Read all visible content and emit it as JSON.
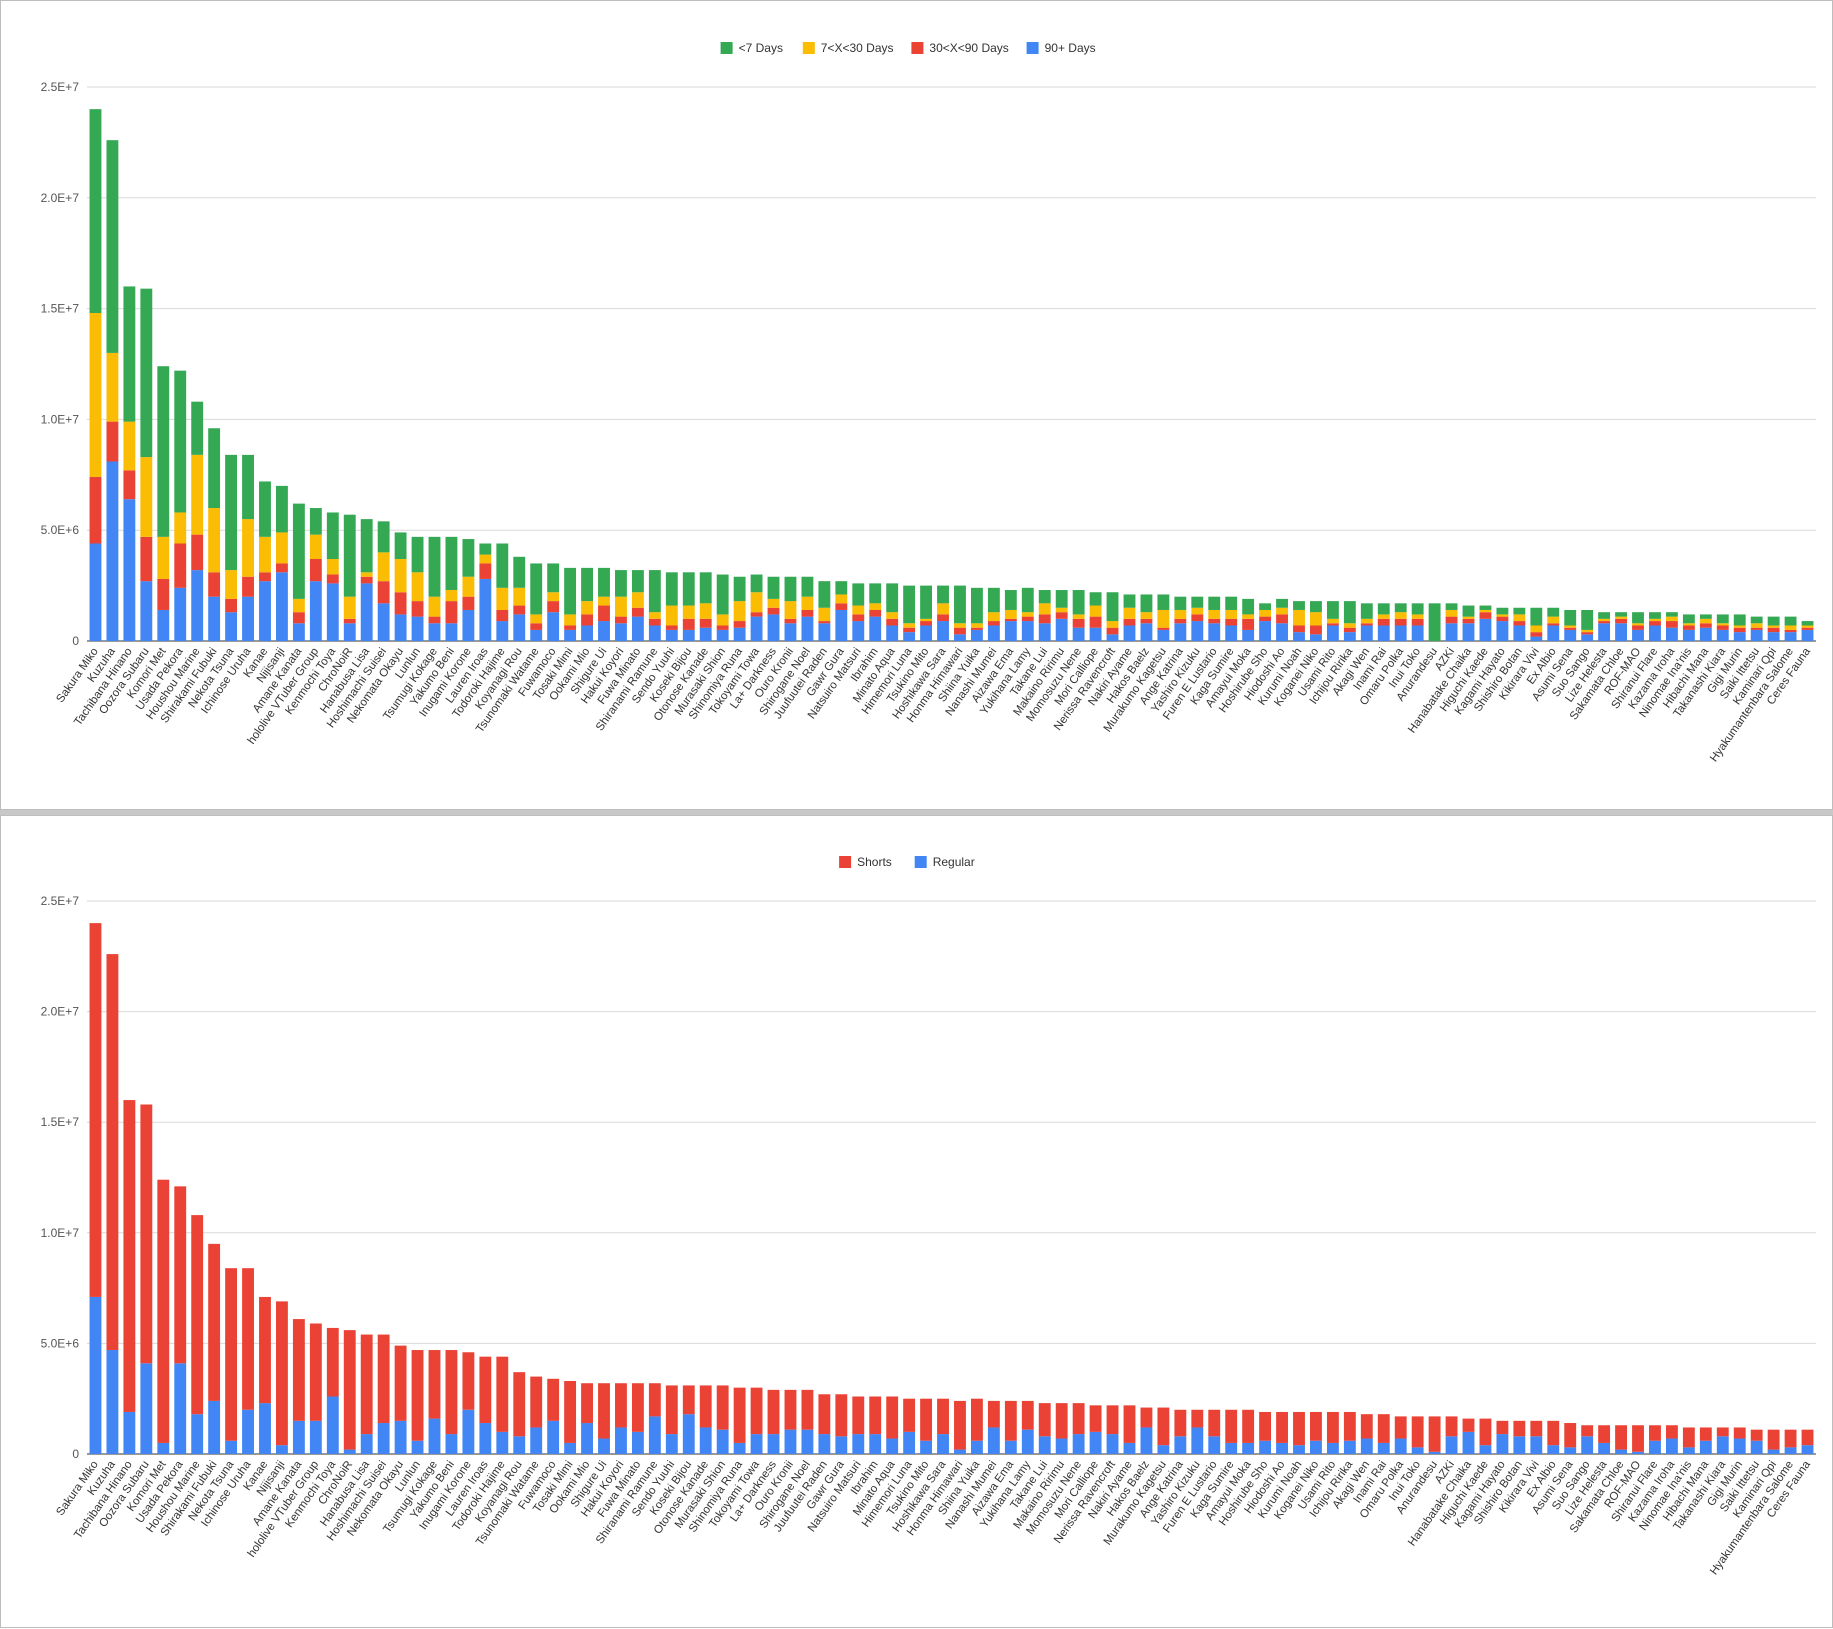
{
  "chart_data": [
    {
      "type": "bar",
      "stacked": true,
      "title": "",
      "xlabel": "",
      "ylabel": "",
      "ylim": [
        0,
        25000000
      ],
      "grid": true,
      "legend_position": "top",
      "y_ticks": [
        "0",
        "5.0E+6",
        "1.0E+7",
        "1.5E+7",
        "2.0E+7",
        "2.5E+7"
      ],
      "categories": [
        "Sakura Miko",
        "Kuzuha",
        "Tachibana Hinano",
        "Oozora Subaru",
        "Komori Met",
        "Usada Pekora",
        "Houshou Marine",
        "Shirakami Fubuki",
        "Nekota Tsuna",
        "Ichinose Uruha",
        "Kanae",
        "Nijisanji",
        "Amane Kanata",
        "hololive VTuber Group",
        "Kenmochi Toya",
        "ChroNoiR",
        "Hanabusa Lisa",
        "Hoshimachi Suisei",
        "Nekomata Okayu",
        "Lunlun",
        "Tsumugi Kokage",
        "Yakumo Beni",
        "Inugami Korone",
        "Lauren Iroas",
        "Todoroki Hajime",
        "Koyanagi Rou",
        "Tsunomaki Watame",
        "Fuwamoco",
        "Tosaki Mimi",
        "Ookami Mio",
        "Shigure Ui",
        "Hakui Koyori",
        "Fuwa Minato",
        "Shiranami Ramune",
        "Sendo Yuuhi",
        "Koseki Bijou",
        "Otonose Kanade",
        "Murasaki Shion",
        "Shinomiya Runa",
        "Tokoyami Towa",
        "La+ Darkness",
        "Ouro Kronii",
        "Shirogane Noel",
        "Juufuutei Raden",
        "Gawr Gura",
        "Natsuiro Matsuri",
        "Ibrahim",
        "Minato Aqua",
        "Himemori Luna",
        "Tsukino Mito",
        "Hoshikawa Sara",
        "Honma Himawari",
        "Shiina Yuika",
        "Nanashi Mumei",
        "Aizawa Ema",
        "Yukihana Lamy",
        "Takane Lui",
        "Makaino Ririmu",
        "Momosuzu Nene",
        "Mori Calliope",
        "Nerissa Ravencroft",
        "Nakiri Ayame",
        "Hakos Baelz",
        "Murakumo Kagetsu",
        "Ange Katrina",
        "Yashiro Kizuku",
        "Furen E Lustario",
        "Kaga Sumire",
        "Amayui Moka",
        "Hoshirube Sho",
        "Hiodoshi Ao",
        "Kurumi Noah",
        "Koganei Niko",
        "Usami Rito",
        "Ichijou Ririka",
        "Akagi Wen",
        "Inami Rai",
        "Omaru Polka",
        "Inui Toko",
        "Anurandesu",
        "AZKi",
        "Hanabatake Chaika",
        "Higuchi Kaede",
        "Kagami Hayato",
        "Shishiro Botan",
        "Kikirara Vivi",
        "Ex Albio",
        "Asumi Sena",
        "Suo Sango",
        "Lize Helesta",
        "Sakamata Chloe",
        "ROF-MAO",
        "Shiranui Flare",
        "Kazama Iroha",
        "Ninomae Ina'nis",
        "Hibachi Mana",
        "Takanashi Kiara",
        "Gigi Murin",
        "Saiki Ittetsu",
        "Kaminari Qpi",
        "Hyakumantenbara Salome",
        "Ceres Fauna"
      ],
      "series": [
        {
          "name": "90+ Days",
          "color": "#4285f4",
          "values": [
            4.4,
            8.1,
            6.4,
            2.7,
            1.4,
            2.4,
            3.2,
            2.0,
            1.3,
            2.0,
            2.7,
            3.1,
            0.8,
            2.7,
            2.6,
            0.8,
            2.6,
            1.7,
            1.2,
            1.1,
            0.8,
            0.8,
            1.4,
            2.8,
            0.9,
            1.2,
            0.5,
            1.3,
            0.5,
            0.7,
            0.9,
            0.8,
            1.1,
            0.7,
            0.5,
            0.5,
            0.6,
            0.5,
            0.6,
            1.1,
            1.2,
            0.8,
            1.1,
            0.8,
            1.4,
            0.9,
            1.1,
            0.7,
            0.4,
            0.7,
            0.9,
            0.3,
            0.5,
            0.7,
            0.9,
            0.9,
            0.8,
            1.0,
            0.6,
            0.6,
            0.3,
            0.7,
            0.8,
            0.5,
            0.8,
            0.9,
            0.8,
            0.7,
            0.5,
            0.9,
            0.8,
            0.4,
            0.3,
            0.7,
            0.4,
            0.7,
            0.7,
            0.7,
            0.7,
            0.0,
            0.8,
            0.8,
            1.0,
            0.9,
            0.7,
            0.2,
            0.7,
            0.5,
            0.3,
            0.8,
            0.8,
            0.5,
            0.7,
            0.6,
            0.5,
            0.6,
            0.5,
            0.4,
            0.5,
            0.4,
            0.4,
            0.5
          ]
        },
        {
          "name": "30<X<90 Days",
          "color": "#ea4335",
          "values": [
            3.0,
            1.8,
            1.3,
            2.0,
            1.4,
            2.0,
            1.6,
            1.1,
            0.6,
            0.9,
            0.4,
            0.4,
            0.5,
            1.0,
            0.4,
            0.2,
            0.3,
            1.0,
            1.0,
            0.7,
            0.3,
            1.0,
            0.6,
            0.7,
            0.5,
            0.4,
            0.3,
            0.5,
            0.2,
            0.5,
            0.7,
            0.3,
            0.4,
            0.3,
            0.2,
            0.5,
            0.4,
            0.2,
            0.3,
            0.2,
            0.3,
            0.2,
            0.3,
            0.1,
            0.3,
            0.3,
            0.3,
            0.3,
            0.2,
            0.2,
            0.3,
            0.3,
            0.1,
            0.2,
            0.1,
            0.2,
            0.4,
            0.3,
            0.4,
            0.5,
            0.3,
            0.3,
            0.2,
            0.1,
            0.2,
            0.3,
            0.2,
            0.3,
            0.5,
            0.2,
            0.4,
            0.3,
            0.4,
            0.1,
            0.2,
            0.1,
            0.3,
            0.3,
            0.3,
            0.0,
            0.3,
            0.2,
            0.3,
            0.2,
            0.2,
            0.2,
            0.1,
            0.1,
            0.1,
            0.1,
            0.2,
            0.2,
            0.2,
            0.3,
            0.2,
            0.2,
            0.2,
            0.2,
            0.1,
            0.2,
            0.1,
            0.1
          ]
        },
        {
          "name": "7<X<30 Days",
          "color": "#fbbc04",
          "values": [
            7.4,
            3.1,
            2.2,
            3.6,
            1.9,
            1.4,
            3.6,
            2.9,
            1.3,
            2.6,
            1.6,
            1.4,
            0.6,
            1.1,
            0.7,
            1.0,
            0.2,
            1.3,
            1.5,
            1.3,
            0.9,
            0.5,
            0.9,
            0.4,
            1.0,
            0.8,
            0.4,
            0.4,
            0.5,
            0.6,
            0.4,
            0.9,
            0.7,
            0.3,
            0.9,
            0.6,
            0.7,
            0.5,
            0.9,
            0.9,
            0.4,
            0.8,
            0.6,
            0.6,
            0.4,
            0.4,
            0.3,
            0.3,
            0.2,
            0.1,
            0.5,
            0.2,
            0.2,
            0.4,
            0.4,
            0.2,
            0.5,
            0.2,
            0.2,
            0.5,
            0.3,
            0.5,
            0.3,
            0.8,
            0.4,
            0.3,
            0.4,
            0.4,
            0.2,
            0.3,
            0.3,
            0.7,
            0.6,
            0.2,
            0.2,
            0.2,
            0.2,
            0.3,
            0.2,
            0.0,
            0.3,
            0.1,
            0.1,
            0.1,
            0.3,
            0.3,
            0.3,
            0.1,
            0.1,
            0.1,
            0.1,
            0.1,
            0.1,
            0.2,
            0.1,
            0.2,
            0.1,
            0.1,
            0.2,
            0.1,
            0.2,
            0.1
          ]
        },
        {
          "name": "<7 Days",
          "color": "#34a853",
          "values": [
            9.2,
            9.6,
            6.1,
            7.6,
            7.7,
            6.4,
            2.4,
            3.6,
            5.2,
            2.9,
            2.5,
            2.1,
            4.3,
            1.2,
            2.1,
            3.7,
            2.4,
            1.4,
            1.2,
            1.6,
            2.7,
            2.4,
            1.7,
            0.5,
            2.0,
            1.4,
            2.3,
            1.3,
            2.1,
            1.5,
            1.3,
            1.2,
            1.0,
            1.9,
            1.5,
            1.5,
            1.4,
            1.8,
            1.1,
            0.8,
            1.0,
            1.1,
            0.9,
            1.2,
            0.6,
            1.0,
            0.9,
            1.3,
            1.7,
            1.5,
            0.8,
            1.7,
            1.6,
            1.1,
            0.9,
            1.1,
            0.6,
            0.8,
            1.1,
            0.6,
            1.3,
            0.6,
            0.8,
            0.7,
            0.6,
            0.5,
            0.6,
            0.6,
            0.7,
            0.3,
            0.4,
            0.4,
            0.5,
            0.8,
            1.0,
            0.7,
            0.5,
            0.4,
            0.5,
            1.7,
            0.3,
            0.5,
            0.2,
            0.3,
            0.3,
            0.8,
            0.4,
            0.7,
            0.9,
            0.3,
            0.2,
            0.5,
            0.3,
            0.2,
            0.4,
            0.2,
            0.4,
            0.5,
            0.3,
            0.4,
            0.4,
            0.2
          ]
        }
      ]
    },
    {
      "type": "bar",
      "stacked": true,
      "title": "",
      "xlabel": "",
      "ylabel": "",
      "ylim": [
        0,
        25000000
      ],
      "grid": true,
      "legend_position": "top",
      "y_ticks": [
        "0",
        "5.0E+6",
        "1.0E+7",
        "1.5E+7",
        "2.0E+7",
        "2.5E+7"
      ],
      "categories": [
        "Sakura Miko",
        "Kuzuha",
        "Tachibana Hinano",
        "Oozora Subaru",
        "Komori Met",
        "Usada Pekora",
        "Houshou Marine",
        "Shirakami Fubuki",
        "Nekota Tsuna",
        "Ichinose Uruha",
        "Kanae",
        "Nijisanji",
        "Amane Kanata",
        "hololive VTuber Group",
        "Kenmochi Toya",
        "ChroNoiR",
        "Hanabusa Lisa",
        "Hoshimachi Suisei",
        "Nekomata Okayu",
        "Lunlun",
        "Tsumugi Kokage",
        "Yakumo Beni",
        "Inugami Korone",
        "Lauren Iroas",
        "Todoroki Hajime",
        "Koyanagi Rou",
        "Tsunomaki Watame",
        "Fuwamoco",
        "Tosaki Mimi",
        "Ookami Mio",
        "Shigure Ui",
        "Hakui Koyori",
        "Fuwa Minato",
        "Shiranami Ramune",
        "Sendo Yuuhi",
        "Koseki Bijou",
        "Otonose Kanade",
        "Murasaki Shion",
        "Shinomiya Runa",
        "Tokoyami Towa",
        "La+ Darkness",
        "Ouro Kronii",
        "Shirogane Noel",
        "Juufuutei Raden",
        "Gawr Gura",
        "Natsuiro Matsuri",
        "Ibrahim",
        "Minato Aqua",
        "Himemori Luna",
        "Tsukino Mito",
        "Hoshikawa Sara",
        "Honma Himawari",
        "Shiina Yuika",
        "Nanashi Mumei",
        "Aizawa Ema",
        "Yukihana Lamy",
        "Takane Lui",
        "Makaino Ririmu",
        "Momosuzu Nene",
        "Mori Calliope",
        "Nerissa Ravencroft",
        "Nakiri Ayame",
        "Hakos Baelz",
        "Murakumo Kagetsu",
        "Ange Katrina",
        "Yashiro Kizuku",
        "Furen E Lustario",
        "Kaga Sumire",
        "Amayui Moka",
        "Hoshirube Sho",
        "Hiodoshi Ao",
        "Kurumi Noah",
        "Koganei Niko",
        "Usami Rito",
        "Ichijou Ririka",
        "Akagi Wen",
        "Inami Rai",
        "Omaru Polka",
        "Inui Toko",
        "Anurandesu",
        "AZKi",
        "Hanabatake Chaika",
        "Higuchi Kaede",
        "Kagami Hayato",
        "Shishiro Botan",
        "Kikirara Vivi",
        "Ex Albio",
        "Asumi Sena",
        "Suo Sango",
        "Lize Helesta",
        "Sakamata Chloe",
        "ROF-MAO",
        "Shiranui Flare",
        "Kazama Iroha",
        "Ninomae Ina'nis",
        "Hibachi Mana",
        "Takanashi Kiara",
        "Gigi Murin",
        "Saiki Ittetsu",
        "Kaminari Qpi",
        "Hyakumantenbara Salome",
        "Ceres Fauna"
      ],
      "series": [
        {
          "name": "Regular",
          "color": "#4285f4",
          "values": [
            7.1,
            4.7,
            1.9,
            4.1,
            0.5,
            4.1,
            1.8,
            2.4,
            0.6,
            2.0,
            2.3,
            0.4,
            1.5,
            1.5,
            2.6,
            0.2,
            0.9,
            1.4,
            1.5,
            0.6,
            1.6,
            0.9,
            2.0,
            1.4,
            1.0,
            0.8,
            1.2,
            1.5,
            0.5,
            1.4,
            0.7,
            1.2,
            1.0,
            1.7,
            0.9,
            1.8,
            1.2,
            1.1,
            0.5,
            0.9,
            0.9,
            1.1,
            1.1,
            0.9,
            0.8,
            0.9,
            0.9,
            0.7,
            1.0,
            0.6,
            0.9,
            0.2,
            0.6,
            1.2,
            0.6,
            1.1,
            0.8,
            0.7,
            0.9,
            1.0,
            0.9,
            0.5,
            1.2,
            0.4,
            0.8,
            1.2,
            0.8,
            0.5,
            0.5,
            0.6,
            0.5,
            0.4,
            0.6,
            0.5,
            0.6,
            0.7,
            0.5,
            0.7,
            0.3,
            0.1,
            0.8,
            1.0,
            0.4,
            0.9,
            0.8,
            0.8,
            0.4,
            0.3,
            0.8,
            0.5,
            0.2,
            0.1,
            0.6,
            0.7,
            0.3,
            0.6,
            0.8,
            0.7,
            0.6,
            0.2,
            0.3,
            0.4
          ]
        },
        {
          "name": "Shorts",
          "color": "#ea4335",
          "values": [
            16.9,
            17.9,
            14.1,
            11.7,
            11.9,
            8.0,
            9.0,
            7.1,
            7.8,
            6.4,
            4.8,
            6.5,
            4.6,
            4.4,
            3.1,
            5.4,
            4.5,
            4.0,
            3.4,
            4.1,
            3.1,
            3.8,
            2.6,
            3.0,
            3.4,
            2.9,
            2.3,
            1.9,
            2.8,
            1.8,
            2.5,
            2.0,
            2.2,
            1.5,
            2.2,
            1.3,
            1.9,
            2.0,
            2.5,
            2.1,
            2.0,
            1.8,
            1.8,
            1.8,
            1.9,
            1.7,
            1.7,
            1.9,
            1.5,
            1.9,
            1.6,
            2.2,
            1.9,
            1.2,
            1.8,
            1.3,
            1.5,
            1.6,
            1.4,
            1.2,
            1.3,
            1.7,
            0.9,
            1.7,
            1.2,
            0.8,
            1.2,
            1.5,
            1.5,
            1.3,
            1.4,
            1.5,
            1.3,
            1.4,
            1.3,
            1.1,
            1.3,
            1.0,
            1.4,
            1.6,
            0.9,
            0.6,
            1.2,
            0.6,
            0.7,
            0.7,
            1.1,
            1.1,
            0.5,
            0.8,
            1.1,
            1.2,
            0.7,
            0.6,
            0.9,
            0.6,
            0.4,
            0.5,
            0.5,
            0.9,
            0.8,
            0.7
          ]
        }
      ]
    }
  ]
}
